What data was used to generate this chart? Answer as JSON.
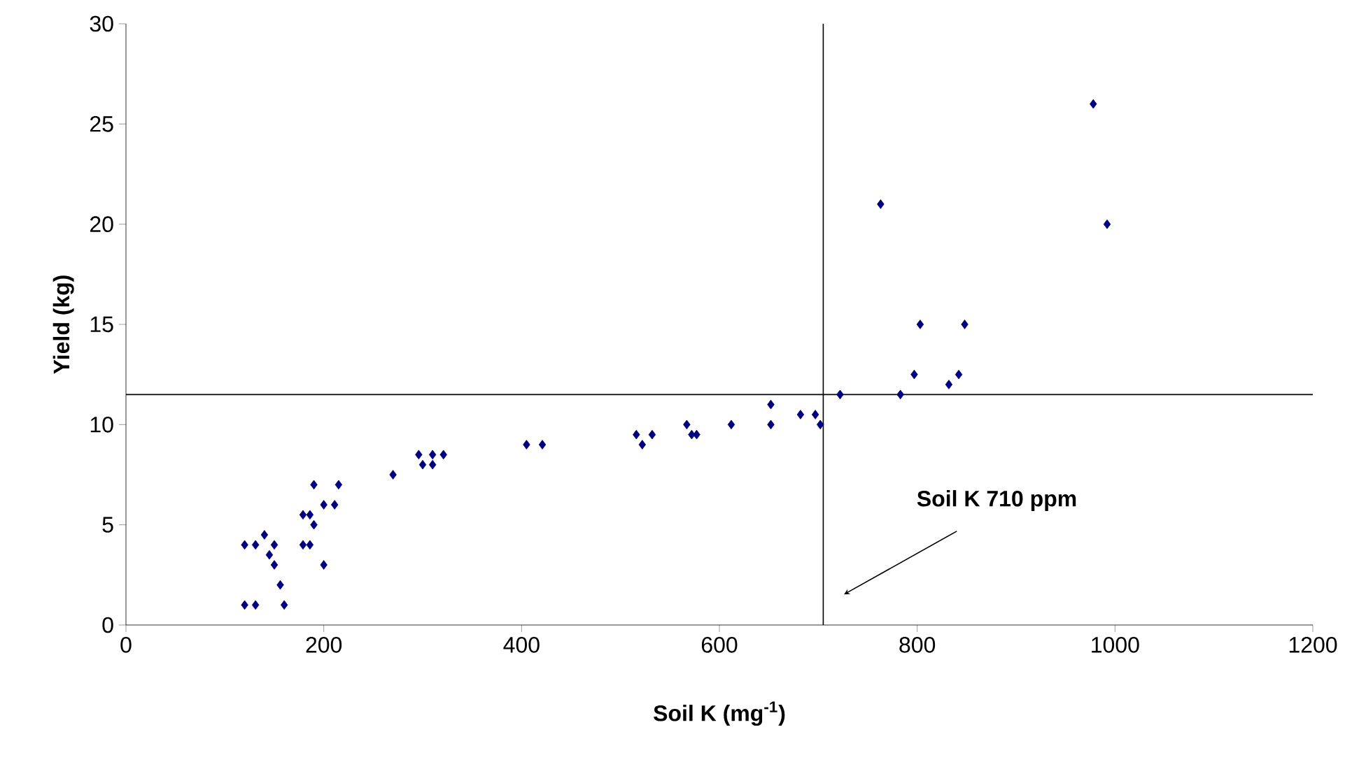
{
  "chart_data": {
    "type": "scatter",
    "xlabel": "Soil K  (mg$^{-1}$)",
    "ylabel": "Yield (kg)",
    "series": [
      {
        "color": "#000080",
        "x": [
          120,
          131,
          160,
          156,
          150,
          145,
          120,
          131,
          140,
          150,
          179,
          186,
          200,
          190,
          179,
          186,
          200,
          211,
          190,
          215,
          270,
          296,
          310,
          321,
          300,
          310,
          405,
          421,
          516,
          522,
          532,
          567,
          572,
          577,
          612,
          652,
          652,
          682,
          697,
          702,
          722,
          783,
          797,
          832,
          842,
          763,
          803,
          848,
          978,
          992
        ],
        "values": [
          1,
          1,
          1,
          2,
          3,
          3.5,
          4,
          4,
          4.5,
          4,
          4,
          4,
          3,
          5,
          5.5,
          5.5,
          6,
          6,
          7,
          7,
          7.5,
          8.5,
          8.5,
          8.5,
          8,
          8,
          9,
          9,
          9.5,
          9,
          9.5,
          10,
          9.5,
          9.5,
          10,
          10,
          11,
          10.5,
          10.5,
          10,
          11.5,
          11.5,
          12.5,
          12,
          12.5,
          21,
          15,
          15,
          26,
          20
        ]
      }
    ],
    "marker": "diamond",
    "xlim": [
      0,
      1200
    ],
    "xticks": [
      0,
      200,
      400,
      600,
      800,
      1000,
      1200
    ],
    "ylim": [
      0,
      30
    ],
    "yticks": [
      0,
      5,
      10,
      15,
      20,
      25,
      30
    ],
    "grid": false,
    "ref_lines": [
      {
        "axis": "x",
        "value": 705,
        "color": "#000000"
      },
      {
        "axis": "y",
        "value": 11.5,
        "color": "#000000"
      }
    ],
    "annotations": [
      "Soil K  710 ppm"
    ]
  }
}
